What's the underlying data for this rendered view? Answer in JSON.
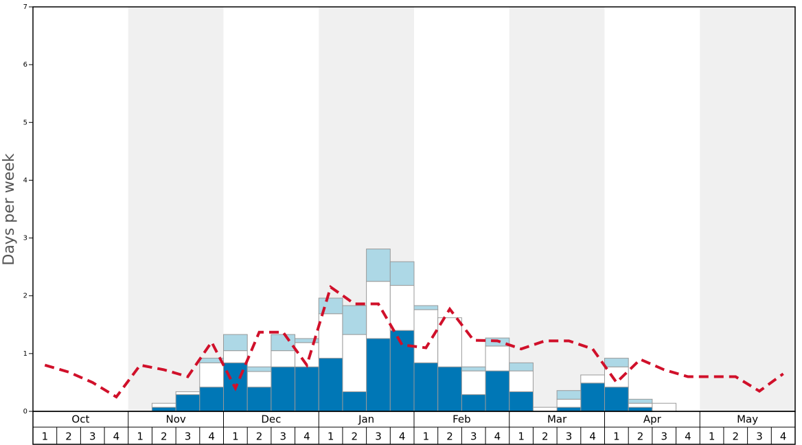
{
  "chart_data": {
    "type": "bar",
    "stacked": true,
    "ylabel": "Days per week",
    "months": [
      "Oct",
      "Nov",
      "Dec",
      "Jan",
      "Feb",
      "Mar",
      "Apr",
      "May"
    ],
    "categories": [
      "1",
      "2",
      "3",
      "4",
      "1",
      "2",
      "3",
      "4",
      "1",
      "2",
      "3",
      "4",
      "1",
      "2",
      "3",
      "4",
      "1",
      "2",
      "3",
      "4",
      "1",
      "2",
      "3",
      "4",
      "1",
      "2",
      "3",
      "4",
      "1",
      "2",
      "3",
      "4"
    ],
    "ylim": [
      0,
      7
    ],
    "yticks": [
      0,
      1,
      2,
      3,
      4,
      5,
      6,
      7
    ],
    "series": [
      {
        "color": "#0077b6",
        "values": [
          0,
          0,
          0,
          0,
          0,
          0.07,
          0.29,
          0.42,
          0.84,
          0.42,
          0.77,
          0.77,
          0.92,
          0.34,
          1.26,
          1.4,
          0.84,
          0.77,
          0.29,
          0.7,
          0.34,
          0,
          0.07,
          0.49,
          0.42,
          0.07,
          0,
          0,
          0,
          0,
          0,
          0
        ]
      },
      {
        "color": "#ffffff",
        "values": [
          0,
          0,
          0,
          0,
          0,
          0.07,
          0.05,
          0.42,
          0.21,
          0.27,
          0.28,
          0.42,
          0.77,
          0.99,
          0.99,
          0.78,
          0.92,
          0.85,
          0.41,
          0.43,
          0.36,
          0.07,
          0.14,
          0.14,
          0.35,
          0.07,
          0.14,
          0,
          0,
          0,
          0,
          0
        ]
      },
      {
        "color": "#add8e6",
        "values": [
          0,
          0,
          0,
          0,
          0,
          0,
          0,
          0.08,
          0.28,
          0.08,
          0.28,
          0.07,
          0.27,
          0.5,
          0.56,
          0.41,
          0.07,
          0,
          0.07,
          0.14,
          0.14,
          0,
          0.15,
          0,
          0.15,
          0.07,
          0,
          0,
          0,
          0,
          0,
          0
        ]
      },
      {
        "type": "line",
        "style": "dashed",
        "color": "#d0102a",
        "values": [
          0.8,
          0.68,
          0.5,
          0.25,
          0.8,
          0.72,
          0.6,
          1.2,
          0.4,
          1.37,
          1.37,
          0.8,
          2.15,
          1.86,
          1.86,
          1.15,
          1.1,
          1.77,
          1.23,
          1.22,
          1.08,
          1.22,
          1.22,
          1.08,
          0.5,
          0.9,
          0.72,
          0.6,
          0.6,
          0.6,
          0.35,
          0.65
        ]
      }
    ]
  }
}
